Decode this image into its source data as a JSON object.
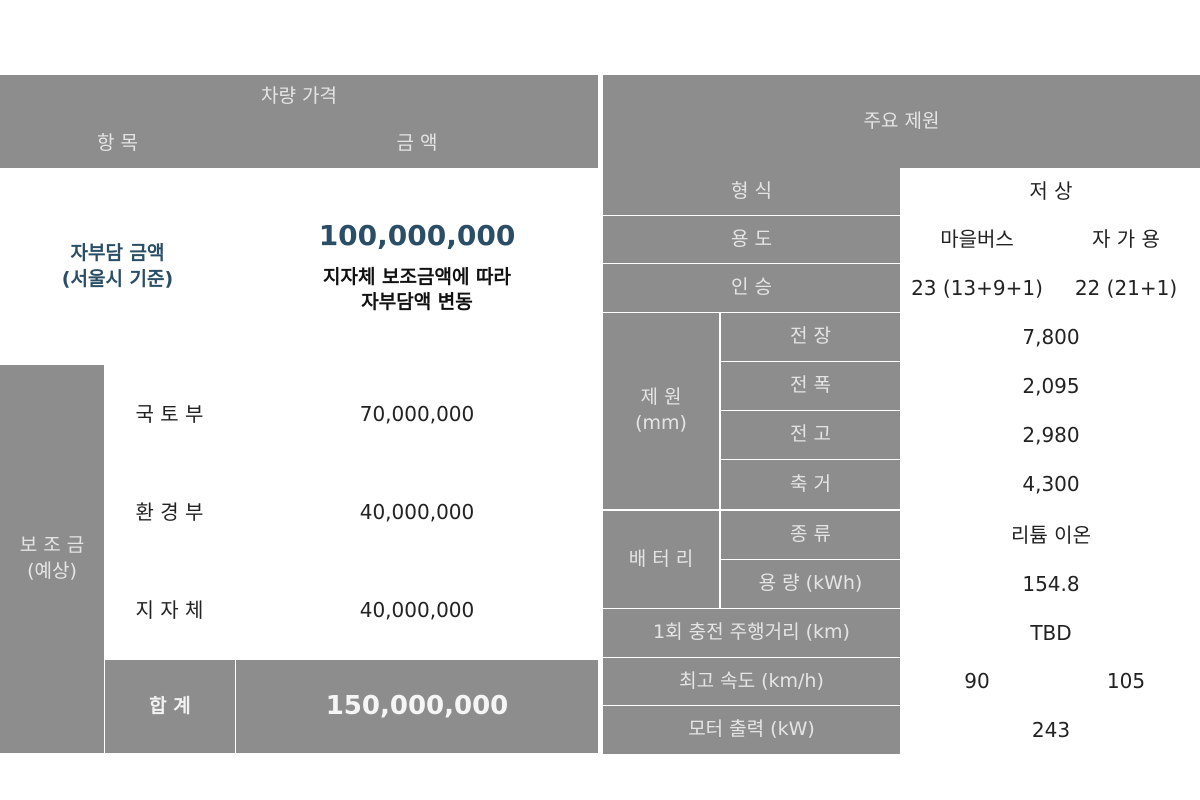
{
  "price": {
    "section_title": "차량 가격",
    "col_item": "항 목",
    "col_amount": "금 액",
    "self_pay_label_1": "자부담 금액",
    "self_pay_label_2": "(서울시 기준)",
    "self_pay_amount": "100,000,000",
    "self_pay_note_1": "지자체 보조금액에 따라",
    "self_pay_note_2": "자부담액 변동",
    "subsidy_label_1": "보 조 금",
    "subsidy_label_2": "(예상)",
    "subsidies": [
      {
        "label": "국 토 부",
        "amount": "70,000,000"
      },
      {
        "label": "환 경 부",
        "amount": "40,000,000"
      },
      {
        "label": "지 자 체",
        "amount": "40,000,000"
      }
    ],
    "total_label": "합 계",
    "total_amount": "150,000,000"
  },
  "specs": {
    "section_title": "주요 제원",
    "type_label": "형 식",
    "type_value": "저 상",
    "use_label": "용 도",
    "use_a": "마을버스",
    "use_b": "자 가 용",
    "seats_label": "인 승",
    "seats_a": "23 (13+9+1)",
    "seats_b": "22 (21+1)",
    "dims_group_1": "제 원",
    "dims_group_2": "(mm)",
    "dims": [
      {
        "label": "전 장",
        "value": "7,800"
      },
      {
        "label": "전 폭",
        "value": "2,095"
      },
      {
        "label": "전 고",
        "value": "2,980"
      },
      {
        "label": "축 거",
        "value": "4,300"
      }
    ],
    "battery_group": "배 터 리",
    "battery_type_label": "종 류",
    "battery_type_value": "리튬 이온",
    "battery_capacity_label": "용 량 (kWh)",
    "battery_capacity_value": "154.8",
    "range_label": "1회 충전 주행거리 (km)",
    "range_value": "TBD",
    "speed_label": "최고 속도 (km/h)",
    "speed_a": "90",
    "speed_b": "105",
    "motor_label": "모터 출력 (kW)",
    "motor_value": "243"
  }
}
